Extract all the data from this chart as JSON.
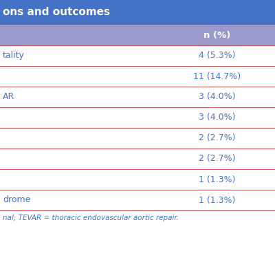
{
  "title": "ons and outcomes",
  "header_col2": "n (%)",
  "rows": [
    [
      "tality",
      "4 (5.3%)"
    ],
    [
      "",
      "11 (14.7%)"
    ],
    [
      "AR",
      "3 (4.0%)"
    ],
    [
      "",
      "3 (4.0%)"
    ],
    [
      "",
      "2 (2.7%)"
    ],
    [
      "",
      "2 (2.7%)"
    ],
    [
      "",
      "1 (1.3%)"
    ],
    [
      "drome",
      "1 (1.3%)"
    ]
  ],
  "footnote": "nal; TEVAR = thoracic endovascular aortic repair.",
  "title_bg": "#4472C4",
  "title_text_color": "#FFFFFF",
  "subheader_bg": "#9999CC",
  "subheader_text_color": "#FFFFFF",
  "row_text_color": "#4472C4",
  "divider_color": "#C0504D",
  "footnote_color": "#4472C4",
  "title_fontsize": 11,
  "header_fontsize": 9.5,
  "row_fontsize": 9,
  "footnote_fontsize": 7.5,
  "fig_width": 4.0,
  "fig_height": 4.0,
  "col_split": 0.58
}
